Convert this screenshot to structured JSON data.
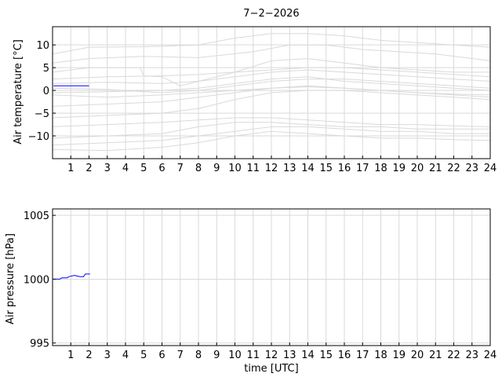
{
  "chart_data": [
    {
      "type": "line",
      "title": "7−2−2026",
      "ylabel": "Air temperature [°C]",
      "xlabel": "",
      "xlim": [
        0,
        24
      ],
      "ylim": [
        -15,
        14
      ],
      "grid": true,
      "x_ticks": [
        "1",
        "2",
        "3",
        "4",
        "5",
        "6",
        "7",
        "8",
        "9",
        "10",
        "11",
        "12",
        "13",
        "14",
        "15",
        "16",
        "17",
        "18",
        "19",
        "20",
        "21",
        "22",
        "23",
        "24"
      ],
      "y_ticks": [
        {
          "value": 10,
          "label": "10"
        },
        {
          "value": 5,
          "label": "5"
        },
        {
          "value": 0,
          "label": "0"
        },
        {
          "value": -5,
          "label": "−5"
        },
        {
          "value": -10,
          "label": "−10"
        }
      ],
      "series": [
        {
          "color": "#0000ff",
          "points": [
            [
              0.05,
              1.0
            ],
            [
              0.5,
              1.0
            ],
            [
              1.0,
              1.0
            ],
            [
              1.5,
              1.0
            ],
            [
              2.0,
              1.0
            ]
          ]
        }
      ],
      "background_series_color": "#d9d9d9",
      "background_series": [
        {
          "points": [
            [
              0,
              8
            ],
            [
              2,
              9.5
            ],
            [
              5,
              9.6
            ],
            [
              8,
              10
            ],
            [
              10,
              11.5
            ],
            [
              12,
              12.5
            ],
            [
              14,
              12.5
            ],
            [
              16,
              12
            ],
            [
              18,
              11
            ],
            [
              20,
              10.5
            ],
            [
              22,
              10
            ],
            [
              24,
              9.5
            ]
          ]
        },
        {
          "points": [
            [
              0,
              6
            ],
            [
              2,
              7
            ],
            [
              5,
              7.5
            ],
            [
              8,
              7.2
            ],
            [
              11,
              8.5
            ],
            [
              13,
              10
            ],
            [
              15,
              10
            ],
            [
              17,
              9
            ],
            [
              19,
              8.5
            ],
            [
              21,
              8
            ],
            [
              24,
              6.5
            ]
          ]
        },
        {
          "points": [
            [
              0,
              4
            ],
            [
              2,
              5
            ],
            [
              4.8,
              5
            ],
            [
              5,
              3.2
            ],
            [
              6,
              3
            ],
            [
              7,
              1
            ],
            [
              8,
              2
            ],
            [
              10,
              4
            ],
            [
              12,
              6.5
            ],
            [
              14,
              7
            ],
            [
              16,
              6
            ],
            [
              18,
              5
            ],
            [
              20,
              4.5
            ],
            [
              22,
              4
            ],
            [
              24,
              4
            ]
          ]
        },
        {
          "points": [
            [
              0,
              2.5
            ],
            [
              3,
              3
            ],
            [
              6,
              3.2
            ],
            [
              8,
              3.5
            ],
            [
              10,
              4
            ],
            [
              12,
              4.5
            ],
            [
              14,
              5
            ],
            [
              16,
              5
            ],
            [
              18,
              4.5
            ],
            [
              20,
              4
            ],
            [
              22,
              3.5
            ],
            [
              24,
              3
            ]
          ]
        },
        {
          "points": [
            [
              0,
              1.5
            ],
            [
              3,
              1.8
            ],
            [
              6,
              1.5
            ],
            [
              8,
              2
            ],
            [
              10,
              3
            ],
            [
              12,
              4
            ],
            [
              14,
              4.5
            ],
            [
              16,
              4
            ],
            [
              18,
              3.5
            ],
            [
              20,
              3
            ],
            [
              22,
              2.5
            ],
            [
              24,
              2
            ]
          ]
        },
        {
          "points": [
            [
              0,
              0.5
            ],
            [
              3,
              0.2
            ],
            [
              6,
              -0.5
            ],
            [
              8,
              0
            ],
            [
              10,
              1
            ],
            [
              12,
              2
            ],
            [
              14,
              2.5
            ],
            [
              16,
              2.5
            ],
            [
              18,
              2
            ],
            [
              20,
              1.5
            ],
            [
              22,
              1
            ],
            [
              24,
              0.5
            ]
          ]
        },
        {
          "points": [
            [
              0,
              -0.5
            ],
            [
              3,
              -0.3
            ],
            [
              6,
              0
            ],
            [
              8,
              0.5
            ],
            [
              10,
              1.5
            ],
            [
              12,
              2.5
            ],
            [
              14,
              3
            ],
            [
              16,
              2
            ],
            [
              18,
              1.5
            ],
            [
              20,
              1
            ],
            [
              22,
              0.5
            ],
            [
              24,
              0
            ]
          ]
        },
        {
          "points": [
            [
              0,
              -1
            ],
            [
              3,
              -1.5
            ],
            [
              6,
              -1
            ],
            [
              8,
              -0.5
            ],
            [
              10,
              0
            ],
            [
              12,
              0.5
            ],
            [
              14,
              0.8
            ],
            [
              16,
              0.5
            ],
            [
              18,
              0
            ],
            [
              20,
              -0.5
            ],
            [
              22,
              -0.8
            ],
            [
              24,
              -1
            ]
          ]
        },
        {
          "points": [
            [
              0,
              -3.5
            ],
            [
              3,
              -3
            ],
            [
              6,
              -2.5
            ],
            [
              8,
              -1.5
            ],
            [
              10,
              -0.5
            ],
            [
              12,
              0.5
            ],
            [
              14,
              1
            ],
            [
              16,
              0.5
            ],
            [
              18,
              0
            ],
            [
              20,
              -0.5
            ],
            [
              22,
              -1
            ],
            [
              24,
              -1.5
            ]
          ]
        },
        {
          "points": [
            [
              0,
              -6
            ],
            [
              3,
              -5.5
            ],
            [
              6,
              -5
            ],
            [
              8,
              -4
            ],
            [
              10,
              -2
            ],
            [
              12,
              -0.5
            ],
            [
              14,
              0
            ],
            [
              16,
              0
            ],
            [
              18,
              -0.5
            ],
            [
              20,
              -1
            ],
            [
              22,
              -1.5
            ],
            [
              24,
              -2
            ]
          ]
        },
        {
          "points": [
            [
              0,
              -8
            ],
            [
              3,
              -7.5
            ],
            [
              6,
              -7
            ],
            [
              8,
              -6.5
            ],
            [
              10,
              -6
            ],
            [
              12,
              -6
            ],
            [
              14,
              -6.5
            ],
            [
              16,
              -7
            ],
            [
              18,
              -7.5
            ],
            [
              20,
              -7.5
            ],
            [
              22,
              -7.8
            ],
            [
              24,
              -8
            ]
          ]
        },
        {
          "points": [
            [
              0,
              -10.5
            ],
            [
              3,
              -10
            ],
            [
              6,
              -9.5
            ],
            [
              8,
              -8
            ],
            [
              10,
              -7
            ],
            [
              12,
              -7
            ],
            [
              14,
              -7.5
            ],
            [
              16,
              -8
            ],
            [
              18,
              -8
            ],
            [
              20,
              -8.5
            ],
            [
              22,
              -8.5
            ],
            [
              24,
              -8.5
            ]
          ]
        },
        {
          "points": [
            [
              0,
              -12
            ],
            [
              3,
              -11.5
            ],
            [
              6,
              -11
            ],
            [
              8,
              -10
            ],
            [
              10,
              -9
            ],
            [
              12,
              -8
            ],
            [
              14,
              -8
            ],
            [
              16,
              -8.5
            ],
            [
              18,
              -9
            ],
            [
              20,
              -9
            ],
            [
              22,
              -9.5
            ],
            [
              24,
              -9.5
            ]
          ]
        },
        {
          "points": [
            [
              0,
              -13
            ],
            [
              3,
              -13.2
            ],
            [
              6,
              -12.5
            ],
            [
              8,
              -11.5
            ],
            [
              10,
              -10
            ],
            [
              12,
              -9
            ],
            [
              14,
              -9.5
            ],
            [
              16,
              -10
            ],
            [
              18,
              -10.5
            ],
            [
              20,
              -10.5
            ],
            [
              22,
              -10.8
            ],
            [
              24,
              -11
            ]
          ]
        }
      ]
    },
    {
      "type": "line",
      "title": "",
      "ylabel": "Air pressure [hPa]",
      "xlabel": "time [UTC]",
      "xlim": [
        0,
        24
      ],
      "ylim": [
        994.8,
        1005.5
      ],
      "grid": true,
      "x_ticks": [
        "1",
        "2",
        "3",
        "4",
        "5",
        "6",
        "7",
        "8",
        "9",
        "10",
        "11",
        "12",
        "13",
        "14",
        "15",
        "16",
        "17",
        "18",
        "19",
        "20",
        "21",
        "22",
        "23",
        "24"
      ],
      "y_ticks": [
        {
          "value": 1005,
          "label": "1005"
        },
        {
          "value": 1000,
          "label": "1000"
        },
        {
          "value": 995,
          "label": "995"
        }
      ],
      "series": [
        {
          "color": "#0000ff",
          "points": [
            [
              0.05,
              1000.0
            ],
            [
              0.4,
              1000.0
            ],
            [
              0.5,
              1000.1
            ],
            [
              0.8,
              1000.1
            ],
            [
              0.9,
              1000.2
            ],
            [
              1.2,
              1000.3
            ],
            [
              1.5,
              1000.2
            ],
            [
              1.7,
              1000.2
            ],
            [
              1.8,
              1000.4
            ],
            [
              2.05,
              1000.4
            ]
          ]
        }
      ]
    }
  ]
}
